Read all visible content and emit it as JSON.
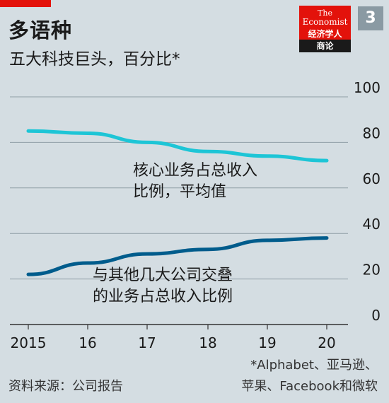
{
  "header": {
    "title": "多语种",
    "subtitle": "五大科技巨头，百分比*",
    "badge": "3"
  },
  "logo": {
    "line1": "The",
    "line2": "Economist",
    "line3": "经济学人",
    "line4": "商论"
  },
  "chart_data": {
    "type": "line",
    "x": [
      "2015",
      "16",
      "17",
      "18",
      "19",
      "20"
    ],
    "ylim": [
      0,
      100
    ],
    "yticks": [
      "0",
      "20",
      "40",
      "60",
      "80",
      "100"
    ],
    "series": [
      {
        "name": "核心业务占总收入比例，平均值",
        "label_lines": [
          "核心业务占总收入",
          "比例，平均值"
        ],
        "values": [
          85,
          84,
          80,
          76,
          74,
          72
        ],
        "color": "#1dc5d6"
      },
      {
        "name": "与其他几大公司交叠的业务占总收入比例",
        "label_lines": [
          "与其他几大公司交叠",
          "的业务占总收入比例"
        ],
        "values": [
          22,
          27,
          31,
          33,
          37,
          38
        ],
        "color": "#005c8c"
      }
    ],
    "grid": true
  },
  "footer": {
    "source": "资料来源：公司报告",
    "footnote_lines": [
      "*Alphabet、亚马逊、",
      "苹果、Facebook和微软"
    ]
  }
}
